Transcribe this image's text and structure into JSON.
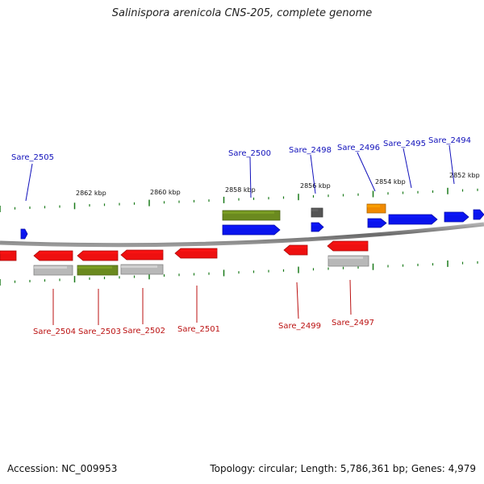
{
  "title": "Salinispora arenicola CNS-205, complete genome",
  "footer": {
    "accession": "Accession: NC_009953",
    "topology": "Topology: circular; Length: 5,786,361 bp; Genes: 4,979"
  },
  "scale": {
    "kbp_labels": [
      "2862 kbp",
      "2860 kbp",
      "2858 kbp",
      "2856 kbp",
      "2854 kbp",
      "2852 kbp"
    ]
  },
  "genes_top": [
    {
      "name": "Sare_2505"
    },
    {
      "name": "Sare_2500"
    },
    {
      "name": "Sare_2498"
    },
    {
      "name": "Sare_2496"
    },
    {
      "name": "Sare_2495"
    },
    {
      "name": "Sare_2494"
    }
  ],
  "genes_bottom": [
    {
      "name": "Sare_2504"
    },
    {
      "name": "Sare_2503"
    },
    {
      "name": "Sare_2502"
    },
    {
      "name": "Sare_2501"
    },
    {
      "name": "Sare_2499"
    },
    {
      "name": "Sare_2497"
    }
  ],
  "colors": {
    "forward": "#0a14ee",
    "reverse": "#ee1010",
    "green": "#6b8a1f",
    "grey": "#b8b8b8",
    "darkgrey": "#555555",
    "orange": "#f08a00",
    "backbone": "#888888",
    "tick": "#1a7a1a",
    "label_top": "#1111bb",
    "label_bottom": "#bb1111"
  }
}
